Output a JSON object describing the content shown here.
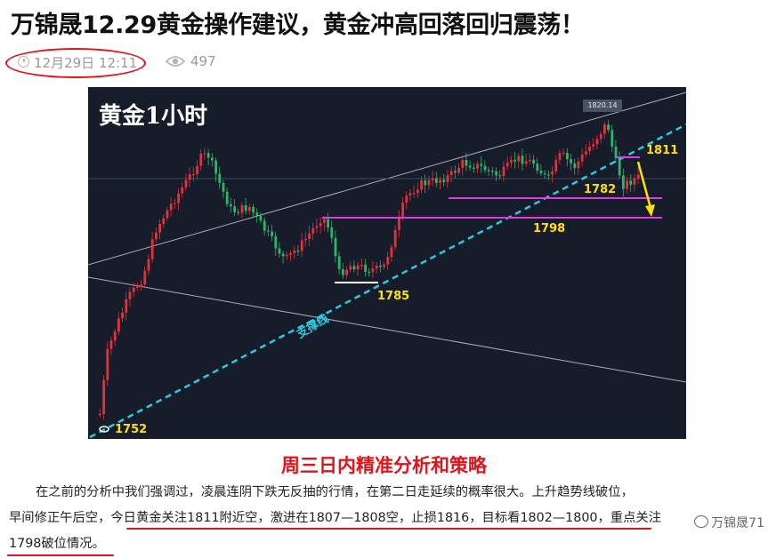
{
  "article": {
    "title": "万锦晟12.29黄金操作建议，黄金冲高回落回归震荡！",
    "date": "12月29日 12:11",
    "views": "497"
  },
  "chart_image": {
    "title": "黄金1小时",
    "peak_label": "1820.14",
    "support_label": "支撑线",
    "levels": {
      "l1811": "1811",
      "l1782": "1782",
      "l1798": "1798",
      "l1785": "1785",
      "l1752": "1752"
    }
  },
  "content": {
    "subtitle": "周三日内精准分析和策略",
    "line1": "在之前的分析中我们强调过，凌晨连阴下跌无反抽的行情，在第二日走延续的概率很大。上升趋势线破位，",
    "line2": "早间修正午后空，今日黄金关注1811附近空，激进在1807—1808空，止损1816，目标看1802—1800，重点关注",
    "line3": "1798破位情况。"
  },
  "watermark": "万锦晟71"
}
